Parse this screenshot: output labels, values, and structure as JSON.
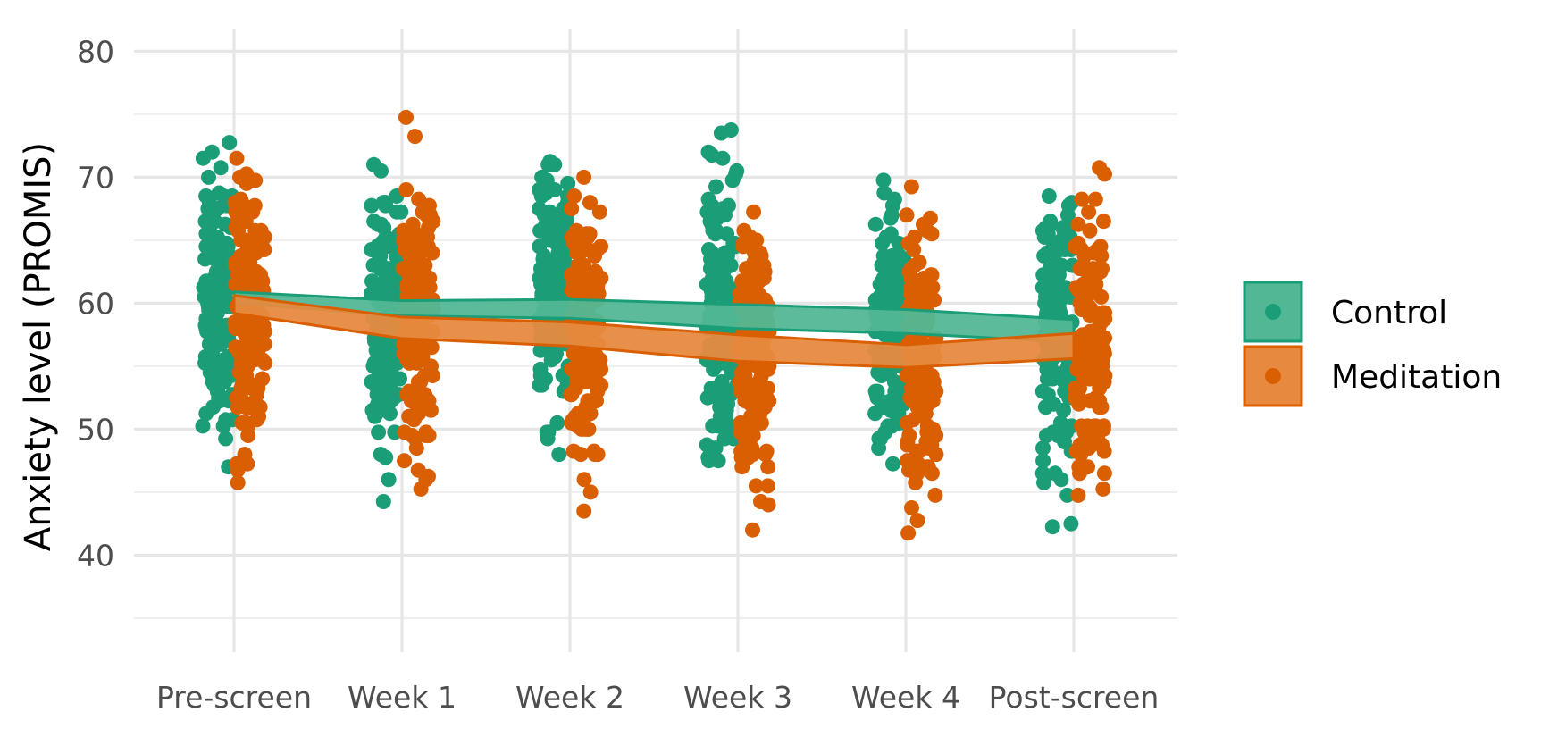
{
  "chart_data": {
    "type": "scatter",
    "ylabel": "Anxiety level (PROMIS)",
    "xlabel": "",
    "categories": [
      "Pre-screen",
      "Week 1",
      "Week 2",
      "Week 3",
      "Week 4",
      "Post-screen"
    ],
    "y_ticks": [
      40,
      50,
      60,
      70,
      80
    ],
    "ylim": [
      32.3,
      81.8
    ],
    "grid": true,
    "legend_position": "right",
    "series": [
      {
        "name": "Control",
        "color": "#1b9e77",
        "band_lower": [
          60.0,
          59.0,
          58.8,
          58.0,
          57.6,
          56.9
        ],
        "band_upper": [
          60.9,
          60.2,
          60.3,
          59.9,
          59.5,
          58.7
        ]
      },
      {
        "name": "Meditation",
        "color": "#d95f02",
        "band_lower": [
          59.2,
          57.2,
          56.6,
          55.4,
          54.9,
          55.6
        ],
        "band_upper": [
          60.6,
          58.9,
          58.5,
          57.5,
          56.7,
          57.6
        ]
      }
    ]
  }
}
